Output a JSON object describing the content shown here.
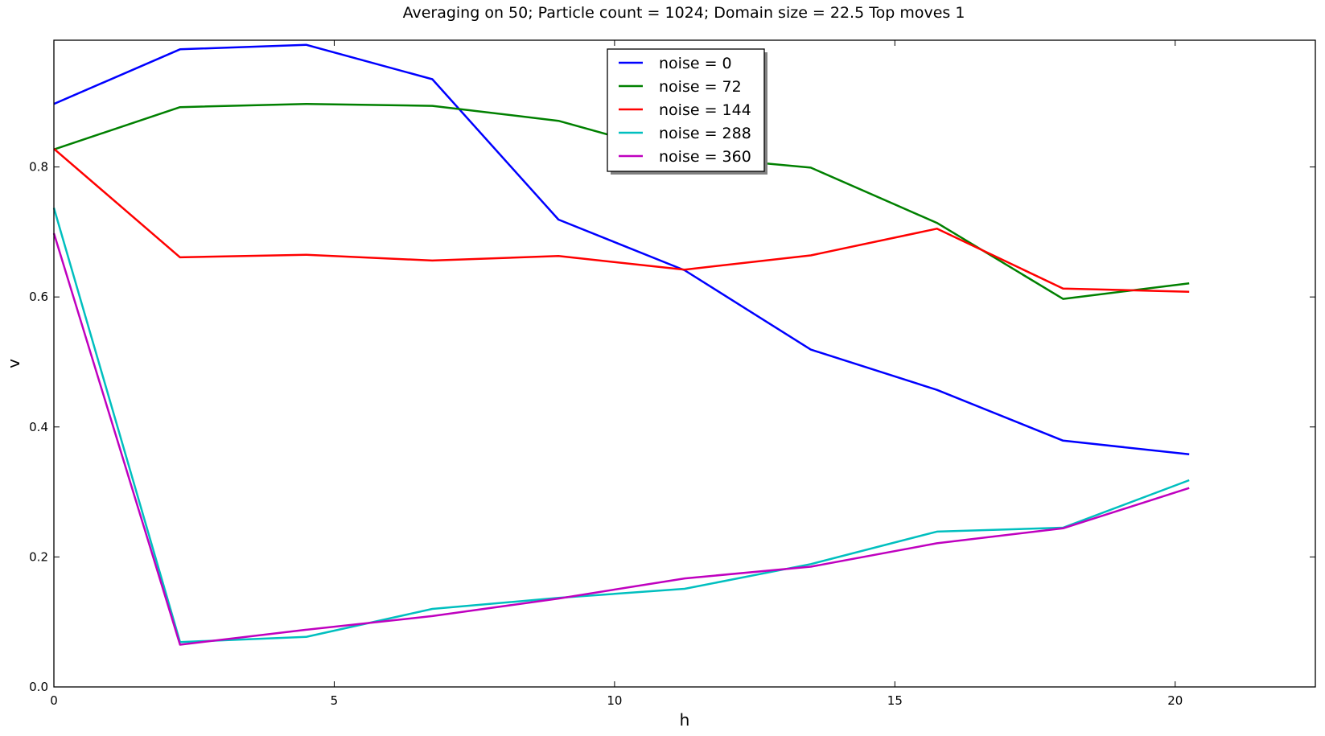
{
  "chart_data": {
    "type": "line",
    "title": "Averaging on 50; Particle count = 1024; Domain size = 22.5 Top moves 1",
    "xlabel": "h",
    "ylabel": "v",
    "xlim": [
      0,
      22.5
    ],
    "ylim": [
      0,
      0.995
    ],
    "xticks": [
      0,
      5,
      10,
      15,
      20
    ],
    "xtick_labels": [
      "0",
      "5",
      "10",
      "15",
      "20"
    ],
    "yticks": [
      0,
      0.2,
      0.4,
      0.6,
      0.8
    ],
    "ytick_labels": [
      "0.0",
      "0.2",
      "0.4",
      "0.6",
      "0.8"
    ],
    "grid": false,
    "legend_position": "top-center",
    "x": [
      0,
      2.25,
      4.5,
      6.75,
      9.0,
      11.25,
      13.5,
      15.75,
      18.0,
      20.25
    ],
    "series": [
      {
        "name": "noise = 0",
        "color": "#0000ff",
        "values": [
          0.897,
          0.981,
          0.988,
          0.935,
          0.719,
          0.641,
          0.519,
          0.457,
          0.379,
          0.358
        ]
      },
      {
        "name": "noise = 72",
        "color": "#008000",
        "values": [
          0.827,
          0.892,
          0.897,
          0.894,
          0.871,
          0.817,
          0.799,
          0.714,
          0.597,
          0.621
        ]
      },
      {
        "name": "noise = 144",
        "color": "#ff0000",
        "values": [
          0.828,
          0.661,
          0.665,
          0.656,
          0.663,
          0.642,
          0.664,
          0.705,
          0.613,
          0.608
        ]
      },
      {
        "name": "noise = 288",
        "color": "#00bfbf",
        "values": [
          0.737,
          0.069,
          0.077,
          0.12,
          0.137,
          0.151,
          0.189,
          0.239,
          0.245,
          0.318
        ]
      },
      {
        "name": "noise = 360",
        "color": "#bf00bf",
        "values": [
          0.698,
          0.065,
          0.088,
          0.109,
          0.136,
          0.167,
          0.185,
          0.221,
          0.244,
          0.306
        ]
      }
    ]
  }
}
